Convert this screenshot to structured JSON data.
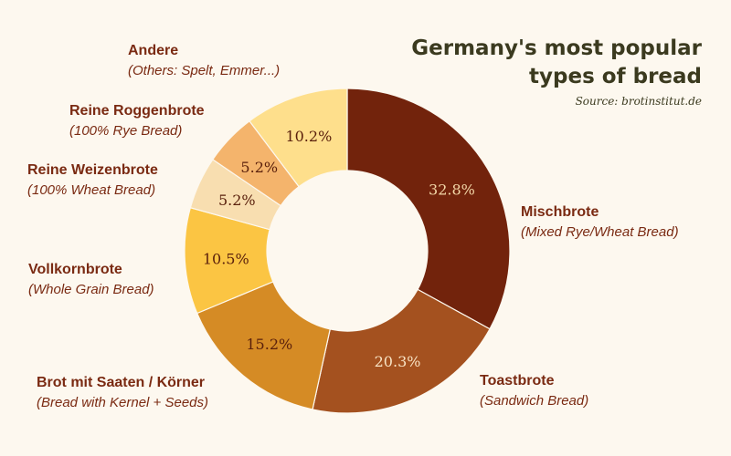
{
  "title": {
    "line1": "Germany's most popular",
    "line2": "types of bread",
    "source": "Source: brotinstitut.de"
  },
  "chart_data": {
    "type": "pie",
    "donut": true,
    "unit": "%",
    "slices": [
      {
        "name": "Mischbrote",
        "subtitle": "(Mixed Rye/Wheat Bread)",
        "value": 32.8,
        "label": "32.8%",
        "color": "#72230c",
        "text_color": "#f3d7a8"
      },
      {
        "name": "Toastbrote",
        "subtitle": "(Sandwich Bread)",
        "value": 20.3,
        "label": "20.3%",
        "color": "#a4511f",
        "text_color": "#f8e3c4"
      },
      {
        "name": "Brot mit Saaten / Körner",
        "subtitle": "(Bread with Kernel + Seeds)",
        "value": 15.2,
        "label": "15.2%",
        "color": "#d58b25",
        "text_color": "#5a200c"
      },
      {
        "name": "Vollkornbrote",
        "subtitle": "(Whole Grain Bread)",
        "value": 10.5,
        "label": "10.5%",
        "color": "#fbc543",
        "text_color": "#5a200c"
      },
      {
        "name": "Reine Weizenbrote",
        "subtitle": "(100% Wheat Bread)",
        "value": 5.2,
        "label": "5.2%",
        "color": "#f8deb0",
        "text_color": "#5a200c"
      },
      {
        "name": "Reine Roggenbrote",
        "subtitle": "(100% Rye Bread)",
        "value": 5.2,
        "label": "5.2%",
        "color": "#f4b46c",
        "text_color": "#5a200c"
      },
      {
        "name": "Andere",
        "subtitle": "(Others: Spelt, Emmer...)",
        "value": 10.2,
        "label": "10.2%",
        "color": "#fedf8c",
        "text_color": "#5a200c"
      }
    ]
  }
}
